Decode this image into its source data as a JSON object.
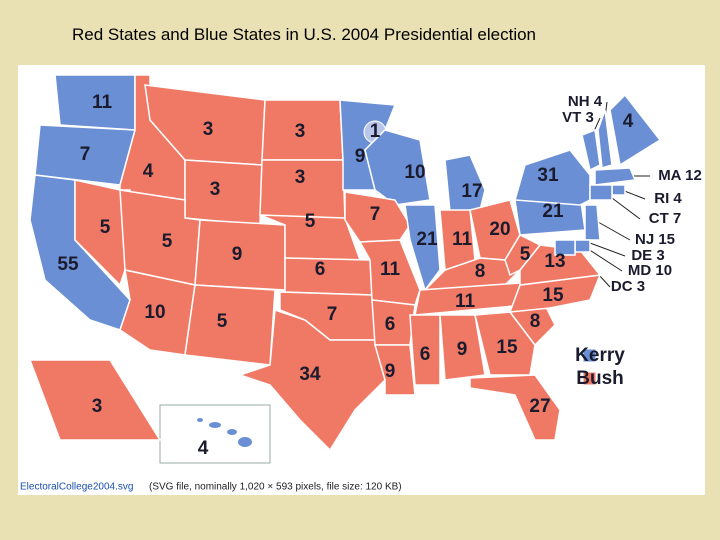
{
  "title": "Red States and Blue States in U.S. 2004 Presidential election",
  "legend": [
    {
      "name": "Kerry",
      "color": "#6b8fd4"
    },
    {
      "name": "Bush",
      "color": "#f07965"
    }
  ],
  "states": [
    {
      "label": "11",
      "winner": "Kerry"
    },
    {
      "label": "7",
      "winner": "Kerry"
    },
    {
      "label": "55",
      "winner": "Kerry"
    },
    {
      "label": "4",
      "winner": "Bush"
    },
    {
      "label": "5",
      "winner": "Bush"
    },
    {
      "label": "3",
      "winner": "Bush"
    },
    {
      "label": "3",
      "winner": "Bush"
    },
    {
      "label": "5",
      "winner": "Bush"
    },
    {
      "label": "10",
      "winner": "Bush"
    },
    {
      "label": "9",
      "winner": "Bush"
    },
    {
      "label": "5",
      "winner": "Bush"
    },
    {
      "label": "3",
      "winner": "Bush"
    },
    {
      "label": "3",
      "winner": "Bush"
    },
    {
      "label": "5",
      "winner": "Bush"
    },
    {
      "label": "6",
      "winner": "Bush"
    },
    {
      "label": "7",
      "winner": "Bush"
    },
    {
      "label": "34",
      "winner": "Bush"
    },
    {
      "label": "9",
      "winner": "Kerry"
    },
    {
      "label": "1",
      "winner": "Kerry"
    },
    {
      "label": "10",
      "winner": "Kerry"
    },
    {
      "label": "7",
      "winner": "Bush"
    },
    {
      "label": "11",
      "winner": "Bush"
    },
    {
      "label": "21",
      "winner": "Kerry"
    },
    {
      "label": "17",
      "winner": "Kerry"
    },
    {
      "label": "11",
      "winner": "Bush"
    },
    {
      "label": "20",
      "winner": "Bush"
    },
    {
      "label": "8",
      "winner": "Bush"
    },
    {
      "label": "11",
      "winner": "Bush"
    },
    {
      "label": "6",
      "winner": "Bush"
    },
    {
      "label": "9",
      "winner": "Bush"
    },
    {
      "label": "6",
      "winner": "Bush"
    },
    {
      "label": "9",
      "winner": "Bush"
    },
    {
      "label": "15",
      "winner": "Bush"
    },
    {
      "label": "27",
      "winner": "Bush"
    },
    {
      "label": "8",
      "winner": "Bush"
    },
    {
      "label": "15",
      "winner": "Bush"
    },
    {
      "label": "13",
      "winner": "Bush"
    },
    {
      "label": "5",
      "winner": "Bush"
    },
    {
      "label": "21",
      "winner": "Kerry"
    },
    {
      "label": "31",
      "winner": "Kerry"
    },
    {
      "label": "VT 3",
      "winner": "Kerry"
    },
    {
      "label": "NH 4",
      "winner": "Kerry"
    },
    {
      "label": "4",
      "winner": "Kerry"
    },
    {
      "label": "MA 12",
      "winner": "Kerry"
    },
    {
      "label": "RI 4",
      "winner": "Kerry"
    },
    {
      "label": "CT 7",
      "winner": "Kerry"
    },
    {
      "label": "NJ 15",
      "winner": "Kerry"
    },
    {
      "label": "DE 3",
      "winner": "Kerry"
    },
    {
      "label": "MD 10",
      "winner": "Kerry"
    },
    {
      "label": "DC 3",
      "winner": "Kerry"
    },
    {
      "label": "3",
      "winner": "Bush"
    },
    {
      "label": "4",
      "winner": "Kerry"
    }
  ],
  "caption": {
    "file": "ElectoralCollege2004.svg",
    "info": "(SVG file, nominally 1,020 × 593 pixels, file size: 120 KB)"
  }
}
